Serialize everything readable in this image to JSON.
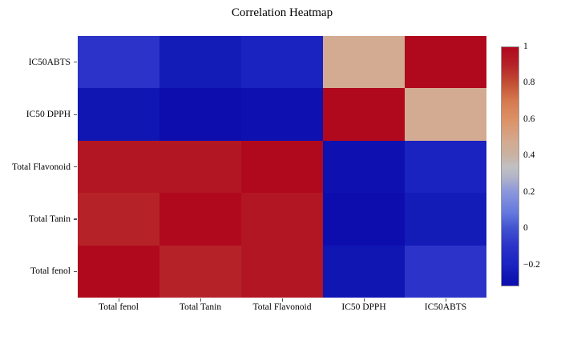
{
  "figure": {
    "background": "#ffffff"
  },
  "chart_data": {
    "type": "heatmap",
    "title": "Correlation Heatmap",
    "x_labels": [
      "Total fenol",
      "Total Tanin",
      "Total Flavonoid",
      "IC50 DPPH",
      "IC50ABTS"
    ],
    "y_labels": [
      "IC50ABTS",
      "IC50 DPPH",
      "Total Flavonoid",
      "Total Tanin",
      "Total fenol"
    ],
    "matrix": [
      [
        -0.1,
        -0.24,
        -0.21,
        0.47,
        1.0
      ],
      [
        -0.27,
        -0.32,
        -0.3,
        1.0,
        0.47
      ],
      [
        0.95,
        0.95,
        1.0,
        -0.3,
        -0.21
      ],
      [
        0.9,
        1.0,
        0.95,
        -0.32,
        -0.24
      ],
      [
        1.0,
        0.9,
        0.95,
        -0.27,
        -0.1
      ]
    ],
    "vmin": -0.32,
    "vmax": 1.0,
    "grid": false,
    "colorbar": {
      "position": "right",
      "ticks": [
        {
          "label": "1",
          "value": 1.0
        },
        {
          "label": "0.8",
          "value": 0.8
        },
        {
          "label": "0.6",
          "value": 0.6
        },
        {
          "label": "0.4",
          "value": 0.4
        },
        {
          "label": "0.2",
          "value": 0.2
        },
        {
          "label": "0",
          "value": 0.0
        },
        {
          "label": "−0.2",
          "value": -0.2
        }
      ]
    },
    "colorscale": [
      {
        "t": 0.0,
        "color": "#0d0dae"
      },
      {
        "t": 0.038,
        "color": "#1016b2"
      },
      {
        "t": 0.061,
        "color": "#141cb8"
      },
      {
        "t": 0.083,
        "color": "#1a22c0"
      },
      {
        "t": 0.167,
        "color": "#2b33c8"
      },
      {
        "t": 0.242,
        "color": "#4254d0"
      },
      {
        "t": 0.303,
        "color": "#6478de"
      },
      {
        "t": 0.394,
        "color": "#8b97dc"
      },
      {
        "t": 0.455,
        "color": "#b2b4c8"
      },
      {
        "t": 0.5,
        "color": "#c2c0c2"
      },
      {
        "t": 0.545,
        "color": "#c9b2a4"
      },
      {
        "t": 0.598,
        "color": "#d2ab92"
      },
      {
        "t": 0.697,
        "color": "#dd9166"
      },
      {
        "t": 0.773,
        "color": "#d67a50"
      },
      {
        "t": 0.848,
        "color": "#c35034"
      },
      {
        "t": 0.924,
        "color": "#b52329"
      },
      {
        "t": 1.0,
        "color": "#b0091d"
      }
    ]
  }
}
